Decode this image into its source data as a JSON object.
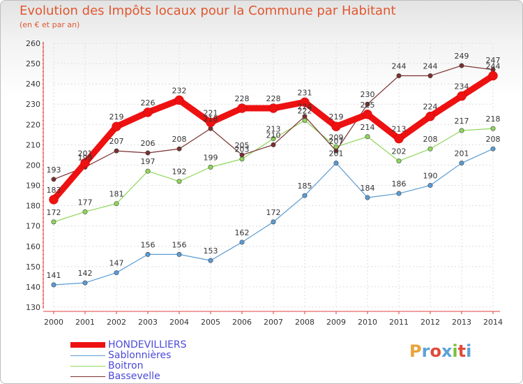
{
  "header": {
    "title": "Evolution des Impôts locaux pour la Commune par Habitant",
    "subtitle": "(en € et par an)"
  },
  "logo": {
    "text": "Proxiti",
    "colors": [
      "#e8a33a",
      "#5aa2d8",
      "#e04a3a",
      "#5aa2d8",
      "#7cbf3a",
      "#e04a3a",
      "#5aa2d8"
    ]
  },
  "chart_data": {
    "type": "line",
    "x": [
      "2000",
      "2001",
      "2002",
      "2003",
      "2004",
      "2005",
      "2006",
      "2007",
      "2008",
      "2009",
      "2010",
      "2011",
      "2012",
      "2013",
      "2014"
    ],
    "ylim": [
      130,
      260
    ],
    "yticks": [
      130,
      140,
      150,
      160,
      170,
      180,
      190,
      200,
      210,
      220,
      230,
      240,
      250,
      260
    ],
    "grid": true,
    "legend_position": "bottom-left",
    "series": [
      {
        "name": "HONDEVILLIERS",
        "color": "#ee1111",
        "values": [
          183,
          201,
          219,
          226,
          232,
          221,
          228,
          228,
          231,
          219,
          225,
          213,
          224,
          234,
          244
        ]
      },
      {
        "name": "Sablonnières",
        "color": "#5a9bd4",
        "values": [
          141,
          142,
          147,
          156,
          156,
          153,
          162,
          172,
          185,
          201,
          184,
          186,
          190,
          201,
          208
        ]
      },
      {
        "name": "Boitron",
        "color": "#8fd65a",
        "values": [
          172,
          177,
          181,
          197,
          192,
          199,
          203,
          213,
          222,
          209,
          214,
          202,
          208,
          217,
          218
        ]
      },
      {
        "name": "Bassevelle",
        "color": "#7a2f2f",
        "values": [
          193,
          199,
          207,
          206,
          208,
          218,
          205,
          210,
          224,
          207,
          230,
          244,
          244,
          249,
          247
        ]
      }
    ]
  }
}
